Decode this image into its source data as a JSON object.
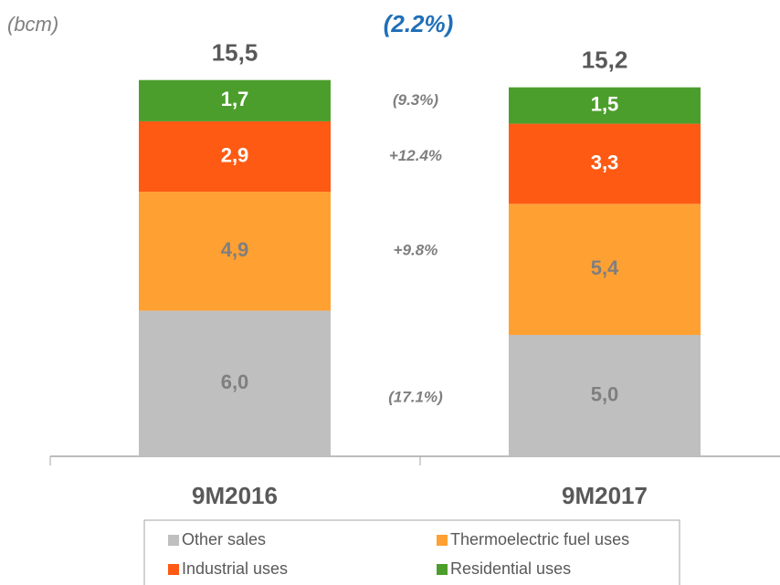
{
  "chart_data": {
    "type": "stacked_bar",
    "unit_label": "(bcm)",
    "total_change": "(2.2%)",
    "categories": [
      "9M2016",
      "9M2017"
    ],
    "totals": [
      15.5,
      15.2
    ],
    "total_labels": [
      "15,5",
      "15,2"
    ],
    "series": [
      {
        "name": "Other sales",
        "color": "#bfbfbf",
        "label_color": "#7f7f7f",
        "values": [
          6.0,
          5.0
        ],
        "value_labels": [
          "6,0",
          "5,0"
        ],
        "change": "(17.1%)"
      },
      {
        "name": "Thermoelectric fuel uses",
        "color": "#ffa033",
        "label_color": "#7f7f7f",
        "values": [
          4.9,
          5.4
        ],
        "value_labels": [
          "4,9",
          "5,4"
        ],
        "change": "+9.8%"
      },
      {
        "name": "Industrial uses",
        "color": "#ff5a14",
        "label_color": "#ffffff",
        "values": [
          2.9,
          3.3
        ],
        "value_labels": [
          "2,9",
          "3,3"
        ],
        "change": "+12.4%"
      },
      {
        "name": "Residential uses",
        "color": "#4c9e2c",
        "label_color": "#ffffff",
        "values": [
          1.7,
          1.5
        ],
        "value_labels": [
          "1,7",
          "1,5"
        ],
        "change": "(9.3%)"
      }
    ]
  }
}
